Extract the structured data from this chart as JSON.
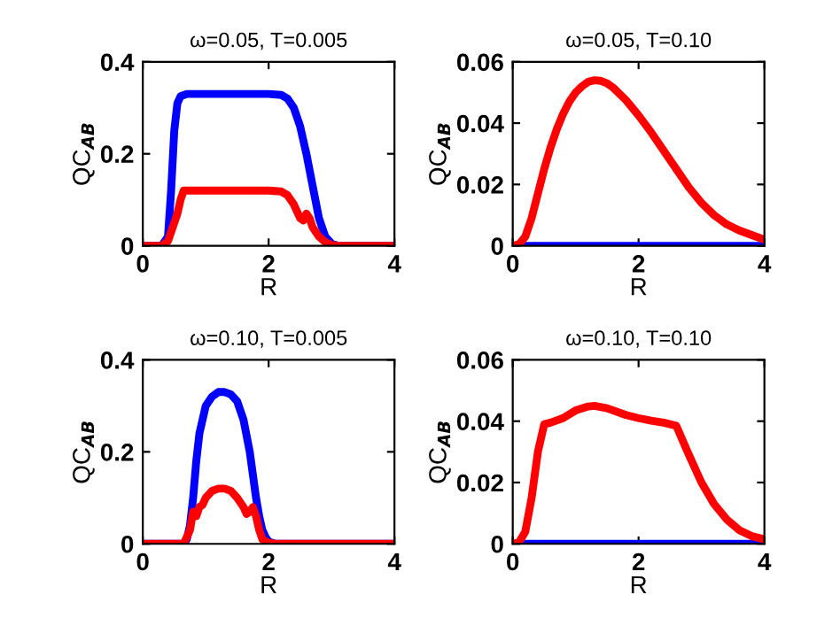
{
  "chart_data": [
    {
      "type": "line",
      "title": "ω=0.05, T=0.005",
      "xlabel": "R",
      "ylabel": "QC$_{AB}$",
      "xlim": [
        0,
        4
      ],
      "ylim": [
        0,
        0.4
      ],
      "xticks": [
        0,
        2,
        4
      ],
      "yticks": [
        0,
        0.2,
        0.4
      ],
      "grid": false,
      "legend": false,
      "series": [
        {
          "color": "#0000ff",
          "x": [
            0,
            0.3,
            0.4,
            0.45,
            0.5,
            0.55,
            0.6,
            0.7,
            1.0,
            1.5,
            2.0,
            2.2,
            2.3,
            2.4,
            2.5,
            2.6,
            2.7,
            2.8,
            2.9,
            3.0,
            3.1,
            3.3,
            4
          ],
          "values": [
            0,
            0,
            0.02,
            0.12,
            0.25,
            0.31,
            0.325,
            0.33,
            0.33,
            0.33,
            0.33,
            0.328,
            0.32,
            0.3,
            0.26,
            0.2,
            0.13,
            0.06,
            0.02,
            0.005,
            0,
            0,
            0
          ]
        },
        {
          "color": "#ff0000",
          "x": [
            0,
            0.3,
            0.4,
            0.45,
            0.5,
            0.55,
            0.6,
            0.65,
            0.7,
            1.0,
            1.5,
            2.0,
            2.2,
            2.3,
            2.4,
            2.5,
            2.55,
            2.6,
            2.65,
            2.7,
            2.8,
            2.9,
            3.0,
            3.1,
            3.3,
            4
          ],
          "values": [
            0,
            0,
            0.01,
            0.03,
            0.05,
            0.07,
            0.1,
            0.12,
            0.12,
            0.12,
            0.12,
            0.12,
            0.118,
            0.11,
            0.09,
            0.06,
            0.055,
            0.07,
            0.06,
            0.04,
            0.02,
            0.008,
            0.002,
            0,
            0,
            0
          ]
        }
      ]
    },
    {
      "type": "line",
      "title": "ω=0.05, T=0.10",
      "xlabel": "R",
      "ylabel": "QC$_{AB}$",
      "xlim": [
        0,
        4
      ],
      "ylim": [
        0,
        0.06
      ],
      "xticks": [
        0,
        2,
        4
      ],
      "yticks": [
        0,
        0.02,
        0.04,
        0.06
      ],
      "grid": false,
      "legend": false,
      "series": [
        {
          "color": "#0000ff",
          "x": [
            0,
            4
          ],
          "values": [
            0,
            0
          ]
        },
        {
          "color": "#ff0000",
          "x": [
            0,
            0.1,
            0.2,
            0.3,
            0.4,
            0.5,
            0.6,
            0.7,
            0.8,
            0.9,
            1.0,
            1.1,
            1.2,
            1.3,
            1.4,
            1.5,
            1.6,
            1.8,
            2.0,
            2.2,
            2.4,
            2.6,
            2.8,
            3.0,
            3.2,
            3.4,
            3.6,
            3.8,
            4.0
          ],
          "values": [
            0,
            0.0005,
            0.003,
            0.009,
            0.017,
            0.025,
            0.032,
            0.038,
            0.043,
            0.047,
            0.05,
            0.052,
            0.0535,
            0.054,
            0.0538,
            0.053,
            0.0515,
            0.0475,
            0.0425,
            0.037,
            0.031,
            0.025,
            0.019,
            0.014,
            0.01,
            0.007,
            0.005,
            0.0035,
            0.002
          ]
        }
      ]
    },
    {
      "type": "line",
      "title": "ω=0.10, T=0.005",
      "xlabel": "R",
      "ylabel": "QC$_{AB}$",
      "xlim": [
        0,
        4
      ],
      "ylim": [
        0,
        0.4
      ],
      "xticks": [
        0,
        2,
        4
      ],
      "yticks": [
        0,
        0.2,
        0.4
      ],
      "grid": false,
      "legend": false,
      "series": [
        {
          "color": "#0000ff",
          "x": [
            0,
            0.65,
            0.7,
            0.75,
            0.8,
            0.85,
            0.9,
            1.0,
            1.1,
            1.2,
            1.3,
            1.4,
            1.5,
            1.6,
            1.7,
            1.75,
            1.8,
            1.85,
            1.9,
            1.95,
            2.0,
            2.1,
            2.2,
            4
          ],
          "values": [
            0,
            0,
            0.01,
            0.04,
            0.1,
            0.18,
            0.24,
            0.3,
            0.32,
            0.33,
            0.33,
            0.325,
            0.31,
            0.27,
            0.2,
            0.15,
            0.1,
            0.06,
            0.03,
            0.015,
            0.005,
            0,
            0,
            0
          ]
        },
        {
          "color": "#ff0000",
          "x": [
            0,
            0.65,
            0.75,
            0.8,
            0.85,
            0.9,
            0.95,
            1.0,
            1.1,
            1.2,
            1.3,
            1.4,
            1.5,
            1.6,
            1.65,
            1.7,
            1.75,
            1.8,
            1.85,
            1.9,
            2.0,
            2.1,
            4
          ],
          "values": [
            0,
            0,
            0.03,
            0.07,
            0.06,
            0.08,
            0.085,
            0.1,
            0.115,
            0.12,
            0.12,
            0.115,
            0.1,
            0.08,
            0.065,
            0.07,
            0.08,
            0.06,
            0.03,
            0.01,
            0.002,
            0,
            0
          ]
        }
      ]
    },
    {
      "type": "line",
      "title": "ω=0.10, T=0.10",
      "xlabel": "R",
      "ylabel": "QC$_{AB}$",
      "xlim": [
        0,
        4
      ],
      "ylim": [
        0,
        0.06
      ],
      "xticks": [
        0,
        2,
        4
      ],
      "yticks": [
        0,
        0.02,
        0.04,
        0.06
      ],
      "grid": false,
      "legend": false,
      "series": [
        {
          "color": "#0000ff",
          "x": [
            0,
            4
          ],
          "values": [
            0,
            0
          ]
        },
        {
          "color": "#ff0000",
          "x": [
            0,
            0.1,
            0.2,
            0.3,
            0.4,
            0.5,
            0.6,
            0.8,
            1.0,
            1.2,
            1.3,
            1.5,
            1.8,
            2.0,
            2.2,
            2.4,
            2.6,
            2.8,
            3.0,
            3.2,
            3.4,
            3.6,
            3.8,
            4.0
          ],
          "values": [
            0,
            0.0005,
            0.004,
            0.015,
            0.03,
            0.039,
            0.0395,
            0.041,
            0.0435,
            0.0448,
            0.045,
            0.0442,
            0.042,
            0.041,
            0.0402,
            0.0395,
            0.0385,
            0.029,
            0.02,
            0.013,
            0.008,
            0.0045,
            0.0025,
            0.0015
          ]
        }
      ]
    }
  ]
}
